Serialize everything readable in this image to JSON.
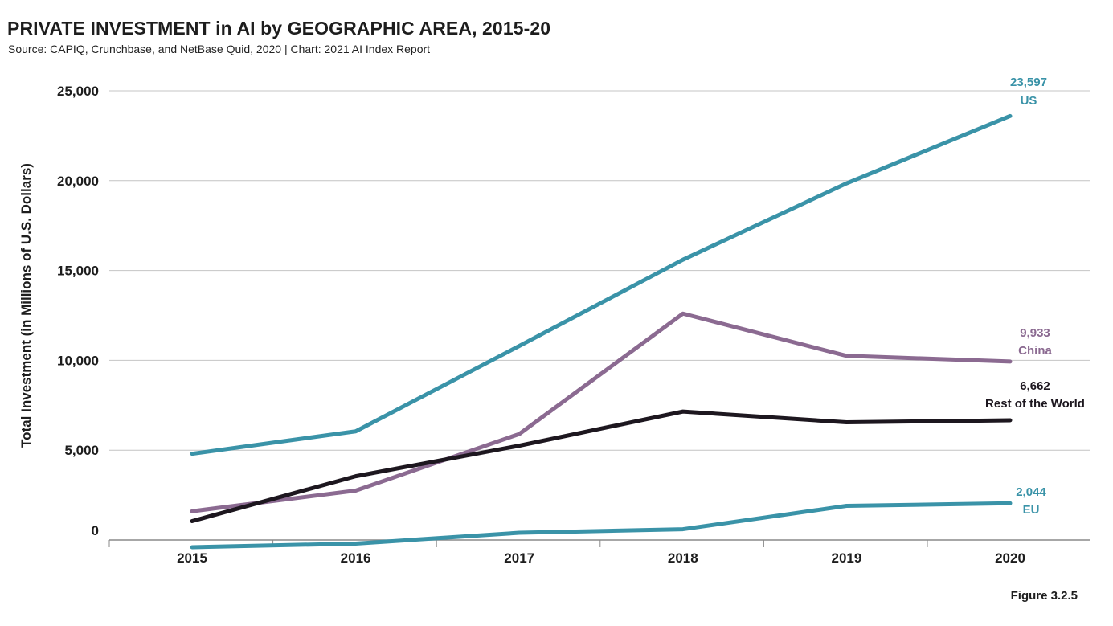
{
  "header": {
    "title": "PRIVATE INVESTMENT in AI by GEOGRAPHIC AREA, 2015-20",
    "subtitle": "Source: CAPIQ, Crunchbase, and NetBase Quid, 2020 | Chart: 2021 AI Index Report"
  },
  "footer": {
    "figure": "Figure 3.2.5"
  },
  "chart_data": {
    "type": "line",
    "title": "PRIVATE INVESTMENT in AI by GEOGRAPHIC AREA, 2015-20",
    "xlabel": "",
    "ylabel": "Total Investment (in Millions of U.S. Dollars)",
    "x": [
      "2015",
      "2016",
      "2017",
      "2018",
      "2019",
      "2020"
    ],
    "ylim": [
      0,
      25000
    ],
    "yticks": [
      0,
      5000,
      10000,
      15000,
      20000,
      25000
    ],
    "ytick_labels": [
      "0",
      "5,000",
      "10,000",
      "15,000",
      "20,000",
      "25,000"
    ],
    "grid": true,
    "series": [
      {
        "name": "US",
        "value_label": "23,597",
        "color": "#3a93a8",
        "values": [
          4800,
          6050,
          10800,
          15600,
          19850,
          23597
        ]
      },
      {
        "name": "China",
        "value_label": "9,933",
        "color": "#8b6a91",
        "values": [
          1600,
          2750,
          5900,
          12600,
          10250,
          9933
        ]
      },
      {
        "name": "Rest of the World",
        "value_label": "6,662",
        "color": "#1d171f",
        "values": [
          1050,
          3550,
          5250,
          7150,
          6550,
          6662
        ]
      },
      {
        "name": "EU",
        "value_label": "2,044",
        "color": "#3a93a8",
        "values": [
          -400,
          -200,
          400,
          600,
          1900,
          2044
        ]
      }
    ]
  }
}
